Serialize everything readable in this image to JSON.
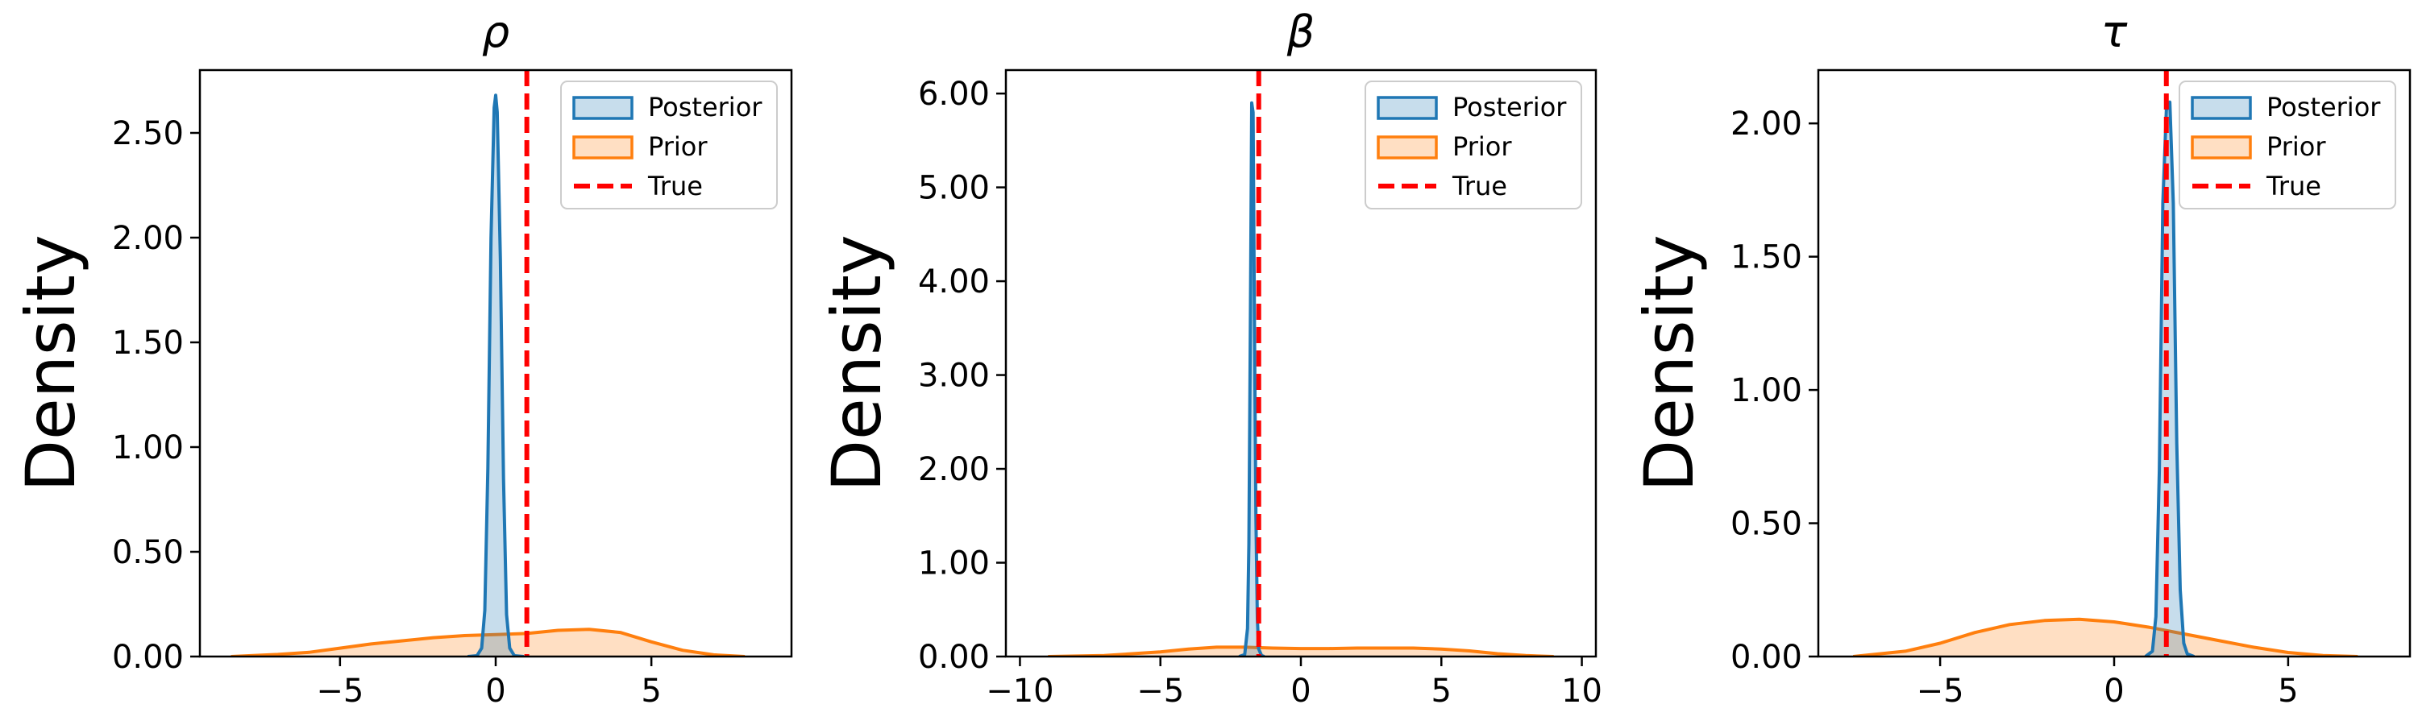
{
  "chart_data": [
    {
      "type": "area",
      "title": "ρ",
      "xlabel": "",
      "ylabel": "Density",
      "xlim": [
        -9.5,
        9.5
      ],
      "ylim": [
        0,
        2.8
      ],
      "xticks": [
        -5,
        0,
        5
      ],
      "yticks": [
        0,
        0.5,
        1.0,
        1.5,
        2.0,
        2.5
      ],
      "ytick_labels": [
        "0.00",
        "0.50",
        "1.00",
        "1.50",
        "2.00",
        "2.50"
      ],
      "legend_position": "top-right",
      "true_value": 1.0,
      "series": [
        {
          "name": "Posterior",
          "color": "#1f77b4",
          "x": [
            -0.9,
            -0.6,
            -0.45,
            -0.35,
            -0.25,
            -0.15,
            -0.05,
            0.0,
            0.05,
            0.15,
            0.25,
            0.35,
            0.45,
            0.6,
            0.9
          ],
          "y": [
            0.0,
            0.004,
            0.04,
            0.22,
            0.9,
            2.0,
            2.62,
            2.68,
            2.6,
            1.9,
            0.85,
            0.2,
            0.04,
            0.004,
            0.0
          ]
        },
        {
          "name": "Prior",
          "color": "#ff7f0e",
          "x": [
            -8.5,
            -7,
            -6,
            -5,
            -4,
            -3,
            -2,
            -1,
            0,
            1,
            2,
            3,
            4,
            5,
            6,
            7,
            8
          ],
          "y": [
            0.0,
            0.01,
            0.02,
            0.04,
            0.06,
            0.075,
            0.09,
            0.1,
            0.105,
            0.11,
            0.125,
            0.13,
            0.115,
            0.07,
            0.03,
            0.008,
            0.0
          ]
        }
      ],
      "legend": [
        "Posterior",
        "Prior",
        "True"
      ]
    },
    {
      "type": "area",
      "title": "β",
      "xlabel": "",
      "ylabel": "Density",
      "xlim": [
        -10.5,
        10.5
      ],
      "ylim": [
        0,
        6.25
      ],
      "xticks": [
        -10,
        -5,
        0,
        5,
        10
      ],
      "yticks": [
        0,
        1,
        2,
        3,
        4,
        5,
        6
      ],
      "ytick_labels": [
        "0.00",
        "1.00",
        "2.00",
        "3.00",
        "4.00",
        "5.00",
        "6.00"
      ],
      "legend_position": "top-right",
      "true_value": -1.5,
      "series": [
        {
          "name": "Posterior",
          "color": "#1f77b4",
          "x": [
            -2.2,
            -2.0,
            -1.9,
            -1.85,
            -1.8,
            -1.75,
            -1.7,
            -1.65,
            -1.6,
            -1.55,
            -1.5,
            -1.4,
            -1.3
          ],
          "y": [
            0.0,
            0.02,
            0.3,
            1.2,
            3.5,
            5.9,
            5.8,
            3.4,
            1.5,
            0.4,
            0.08,
            0.01,
            0.0
          ]
        },
        {
          "name": "Prior",
          "color": "#ff7f0e",
          "x": [
            -9,
            -7,
            -5,
            -4,
            -3,
            -2,
            -1,
            0,
            1,
            2,
            3,
            4,
            5,
            6,
            7,
            8,
            9
          ],
          "y": [
            0.0,
            0.01,
            0.05,
            0.08,
            0.1,
            0.1,
            0.09,
            0.085,
            0.085,
            0.09,
            0.09,
            0.09,
            0.08,
            0.06,
            0.03,
            0.01,
            0.0
          ]
        }
      ],
      "legend": [
        "Posterior",
        "Prior",
        "True"
      ]
    },
    {
      "type": "area",
      "title": "τ",
      "xlabel": "",
      "ylabel": "Density",
      "xlim": [
        -8.5,
        8.5
      ],
      "ylim": [
        0,
        2.2
      ],
      "xticks": [
        -5,
        0,
        5
      ],
      "yticks": [
        0,
        0.5,
        1.0,
        1.5,
        2.0
      ],
      "ytick_labels": [
        "0.00",
        "0.50",
        "1.00",
        "1.50",
        "2.00"
      ],
      "legend_position": "top-right",
      "true_value": 1.5,
      "series": [
        {
          "name": "Posterior",
          "color": "#1f77b4",
          "x": [
            0.9,
            1.1,
            1.2,
            1.3,
            1.4,
            1.5,
            1.6,
            1.7,
            1.8,
            1.9,
            2.0,
            2.1,
            2.3
          ],
          "y": [
            0.0,
            0.02,
            0.15,
            0.7,
            1.7,
            2.05,
            2.08,
            1.7,
            0.8,
            0.25,
            0.05,
            0.01,
            0.0
          ]
        },
        {
          "name": "Prior",
          "color": "#ff7f0e",
          "x": [
            -7.5,
            -6,
            -5,
            -4,
            -3,
            -2,
            -1,
            0,
            1,
            2,
            3,
            4,
            5,
            6,
            7
          ],
          "y": [
            0.0,
            0.02,
            0.05,
            0.09,
            0.12,
            0.135,
            0.14,
            0.13,
            0.11,
            0.085,
            0.06,
            0.035,
            0.015,
            0.004,
            0.0
          ]
        }
      ],
      "legend": [
        "Posterior",
        "Prior",
        "True"
      ]
    }
  ],
  "colors": {
    "posterior": "#1f77b4",
    "prior": "#ff7f0e",
    "true_line": "#ff0000"
  }
}
